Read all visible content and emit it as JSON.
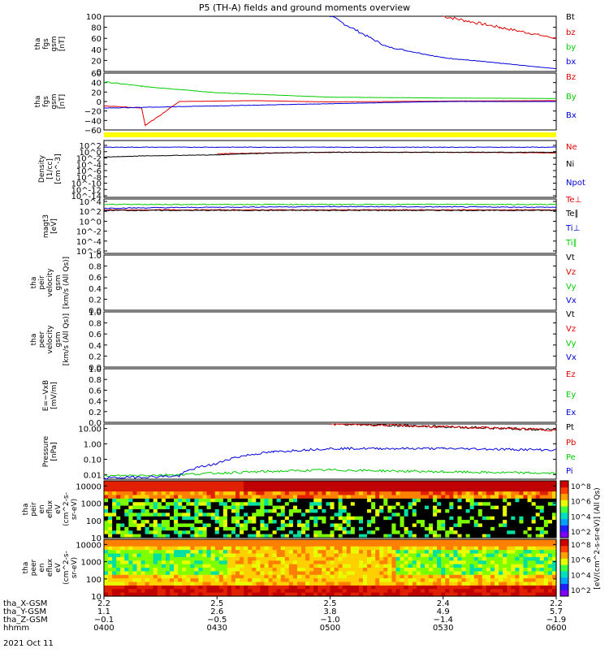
{
  "title": "P5 (TH-A) fields and ground moments overview",
  "date_label": "2021 Oct 11",
  "colors": {
    "black": "#000000",
    "red": "#e00000",
    "green": "#00cc00",
    "blue": "#0000dd",
    "yellow": "#ffff00"
  },
  "chart_data": [
    {
      "type": "line",
      "id": "fgs_mag",
      "ylabel": [
        "tha",
        "fgs",
        "gsm",
        "[nT]"
      ],
      "ylim": [
        0,
        100
      ],
      "yticks": [
        "0",
        "20",
        "40",
        "60",
        "80",
        "100"
      ],
      "series": [
        {
          "name": "Bt",
          "color": "#000000",
          "x": [
            "04:00",
            "06:00"
          ],
          "y": [
            null,
            null
          ]
        },
        {
          "name": "bz",
          "color": "#e00000",
          "x": [
            "05:30",
            "05:45",
            "06:00"
          ],
          "y": [
            100,
            80,
            60
          ]
        },
        {
          "name": "by",
          "color": "#00cc00",
          "x": [],
          "y": []
        },
        {
          "name": "bx",
          "color": "#0000dd",
          "x": [
            "05:00",
            "05:15",
            "05:30",
            "05:45",
            "06:00"
          ],
          "y": [
            100,
            45,
            25,
            15,
            5
          ]
        }
      ]
    },
    {
      "type": "line",
      "id": "fgs_comp",
      "ylabel": [
        "tha",
        "fgs",
        "gsm",
        "[nT]"
      ],
      "ylim": [
        -70,
        60
      ],
      "yticks": [
        "−60",
        "−40",
        "−20",
        "0",
        "20",
        "40",
        "60"
      ],
      "series": [
        {
          "name": "Bz",
          "color": "#e00000",
          "x": [
            "04:00",
            "04:10",
            "04:11",
            "04:20",
            "04:40",
            "05:00",
            "05:30",
            "06:00"
          ],
          "y": [
            -15,
            -20,
            -60,
            -5,
            -3,
            -6,
            -4,
            -3
          ]
        },
        {
          "name": "By",
          "color": "#00cc00",
          "x": [
            "04:00",
            "04:10",
            "04:30",
            "05:00",
            "05:30",
            "06:00"
          ],
          "y": [
            40,
            30,
            15,
            5,
            3,
            2
          ]
        },
        {
          "name": "Bx",
          "color": "#0000dd",
          "x": [
            "04:00",
            "04:30",
            "05:00",
            "05:30",
            "06:00"
          ],
          "y": [
            -20,
            -15,
            -10,
            -5,
            -5
          ]
        }
      ]
    },
    {
      "type": "line",
      "id": "density",
      "ylabel": [
        "Density",
        "[1/cc]",
        "[cm^-3]"
      ],
      "log": true,
      "ylim": [
        -14,
        3
      ],
      "yticks": [
        "10^2",
        "10^0",
        "10^-2",
        "10^-4",
        "10^-6",
        "10^-8",
        "10^-10",
        "10^-12",
        "10^-14"
      ],
      "series": [
        {
          "name": "Ne",
          "color": "#e00000",
          "x": [
            "04:30",
            "05:00",
            "05:30",
            "06:00"
          ],
          "y": [
            0.1,
            0.3,
            0.3,
            0.2
          ]
        },
        {
          "name": "Ni",
          "color": "#000000",
          "x": [
            "04:00",
            "04:30",
            "05:00",
            "05:30",
            "06:00"
          ],
          "y": [
            0.01,
            0.05,
            0.3,
            0.3,
            0.3
          ]
        },
        {
          "name": "Npot",
          "color": "#0000dd",
          "x": [
            "04:00",
            "04:30",
            "05:00",
            "05:30",
            "06:00"
          ],
          "y": [
            10,
            10,
            10,
            10,
            10
          ]
        }
      ]
    },
    {
      "type": "line",
      "id": "temp",
      "ylabel": [
        "magt3",
        "[eV]"
      ],
      "log": true,
      "ylim": [
        -6,
        4
      ],
      "yticks": [
        "10^4",
        "10^2",
        "10^0",
        "10^-2",
        "10^-4",
        "10^-6"
      ],
      "series": [
        {
          "name": "Te⊥",
          "color": "#e00000",
          "x": [
            "04:00",
            "05:00",
            "06:00"
          ],
          "y": [
            100,
            100,
            100
          ]
        },
        {
          "name": "Te∥",
          "color": "#000000",
          "x": [
            "04:00",
            "05:00",
            "06:00"
          ],
          "y": [
            80,
            80,
            80
          ]
        },
        {
          "name": "Ti⊥",
          "color": "#0000dd",
          "x": [
            "04:00",
            "05:00",
            "06:00"
          ],
          "y": [
            200,
            400,
            300
          ]
        },
        {
          "name": "Ti∥",
          "color": "#00cc00",
          "x": [
            "04:00",
            "05:00",
            "06:00"
          ],
          "y": [
            1000,
            1000,
            1000
          ]
        }
      ]
    },
    {
      "type": "line",
      "id": "peir_vel",
      "ylabel": [
        "tha",
        "peir",
        "velocity",
        "gsm",
        "[km/s (All Qs)]"
      ],
      "ylim": [
        0,
        1
      ],
      "yticks": [
        "0.0",
        "0.2",
        "0.4",
        "0.6",
        "0.8",
        "1.0"
      ],
      "series": [
        {
          "name": "Vt",
          "color": "#000000"
        },
        {
          "name": "Vz",
          "color": "#e00000"
        },
        {
          "name": "Vy",
          "color": "#00cc00"
        },
        {
          "name": "Vx",
          "color": "#0000dd"
        }
      ]
    },
    {
      "type": "line",
      "id": "peer_vel",
      "ylabel": [
        "tha",
        "peer",
        "velocity",
        "gsm",
        "[km/s (All Qs)]"
      ],
      "ylim": [
        0,
        1
      ],
      "yticks": [
        "0.0",
        "0.2",
        "0.4",
        "0.6",
        "0.8",
        "1.0"
      ],
      "series": [
        {
          "name": "Vt",
          "color": "#000000"
        },
        {
          "name": "Vz",
          "color": "#e00000"
        },
        {
          "name": "Vy",
          "color": "#00cc00"
        },
        {
          "name": "Vx",
          "color": "#0000dd"
        }
      ]
    },
    {
      "type": "line",
      "id": "efield",
      "ylabel": [
        "E=−VxB",
        "[mV/m]"
      ],
      "ylim": [
        0,
        1
      ],
      "yticks": [
        "0.0",
        "0.2",
        "0.4",
        "0.6",
        "0.8",
        "1.0"
      ],
      "series": [
        {
          "name": "Ez",
          "color": "#e00000"
        },
        {
          "name": "Ey",
          "color": "#00cc00"
        },
        {
          "name": "Ex",
          "color": "#0000dd"
        }
      ]
    },
    {
      "type": "line",
      "id": "pressure",
      "ylabel": [
        "Pressure",
        "[nPa]"
      ],
      "log": true,
      "ylim": [
        -2.3,
        1.3
      ],
      "yticks": [
        "10.00",
        "1.00",
        "0.10",
        "0.01"
      ],
      "series": [
        {
          "name": "Pt",
          "color": "#000000",
          "x": [
            "05:00",
            "05:30",
            "06:00"
          ],
          "y": [
            20,
            13,
            8
          ]
        },
        {
          "name": "Pb",
          "color": "#e00000",
          "x": [
            "05:00",
            "05:30",
            "06:00"
          ],
          "y": [
            20,
            13,
            8
          ]
        },
        {
          "name": "Pe",
          "color": "#00cc00",
          "x": [
            "04:00",
            "04:20",
            "04:40",
            "05:00",
            "05:30",
            "06:00"
          ],
          "y": [
            0.008,
            0.01,
            0.015,
            0.02,
            0.015,
            0.012
          ]
        },
        {
          "name": "Pi",
          "color": "#0000dd",
          "x": [
            "04:00",
            "04:20",
            "04:30",
            "04:45",
            "05:00",
            "05:30",
            "06:00"
          ],
          "y": [
            0.006,
            0.008,
            0.05,
            0.3,
            0.5,
            0.5,
            0.4
          ]
        }
      ]
    },
    {
      "type": "heatmap",
      "id": "peir_spec",
      "ylabel": [
        "tha",
        "peir",
        "en",
        "eflux",
        "eV",
        "(cm^2-s-",
        "sr-eV)"
      ],
      "log": true,
      "ylim": [
        1,
        4.3
      ],
      "yticks": [
        "10000",
        "1000",
        "100",
        "10"
      ]
    },
    {
      "type": "heatmap",
      "id": "peer_spec",
      "ylabel": [
        "tha",
        "peer",
        "en",
        "eflux",
        "eV",
        "(cm^2-s-",
        "sr-eV)"
      ],
      "log": true,
      "ylim": [
        1,
        4.3
      ],
      "yticks": [
        "10000",
        "1000",
        "100",
        "10"
      ]
    }
  ],
  "colorbar": {
    "label": "[eV/(cm^2-s-sr-eV)] (All Qs)",
    "ticks": [
      "10^8",
      "10^6",
      "10^4",
      "10^2"
    ]
  },
  "ephemeris": {
    "row_labels": [
      "tha_X-GSM",
      "tha_Y-GSM",
      "tha_Z-GSM",
      "hhmm"
    ],
    "columns": [
      {
        "x": "2.2",
        "y": "1.1",
        "z": "−0.1",
        "t": "0400"
      },
      {
        "x": "2.5",
        "y": "2.6",
        "z": "−0.5",
        "t": "0430"
      },
      {
        "x": "2.5",
        "y": "3.8",
        "z": "−1.0",
        "t": "0500"
      },
      {
        "x": "2.4",
        "y": "4.9",
        "z": "−1.4",
        "t": "0530"
      },
      {
        "x": "2.2",
        "y": "5.7",
        "z": "−1.9",
        "t": "0600"
      }
    ]
  }
}
